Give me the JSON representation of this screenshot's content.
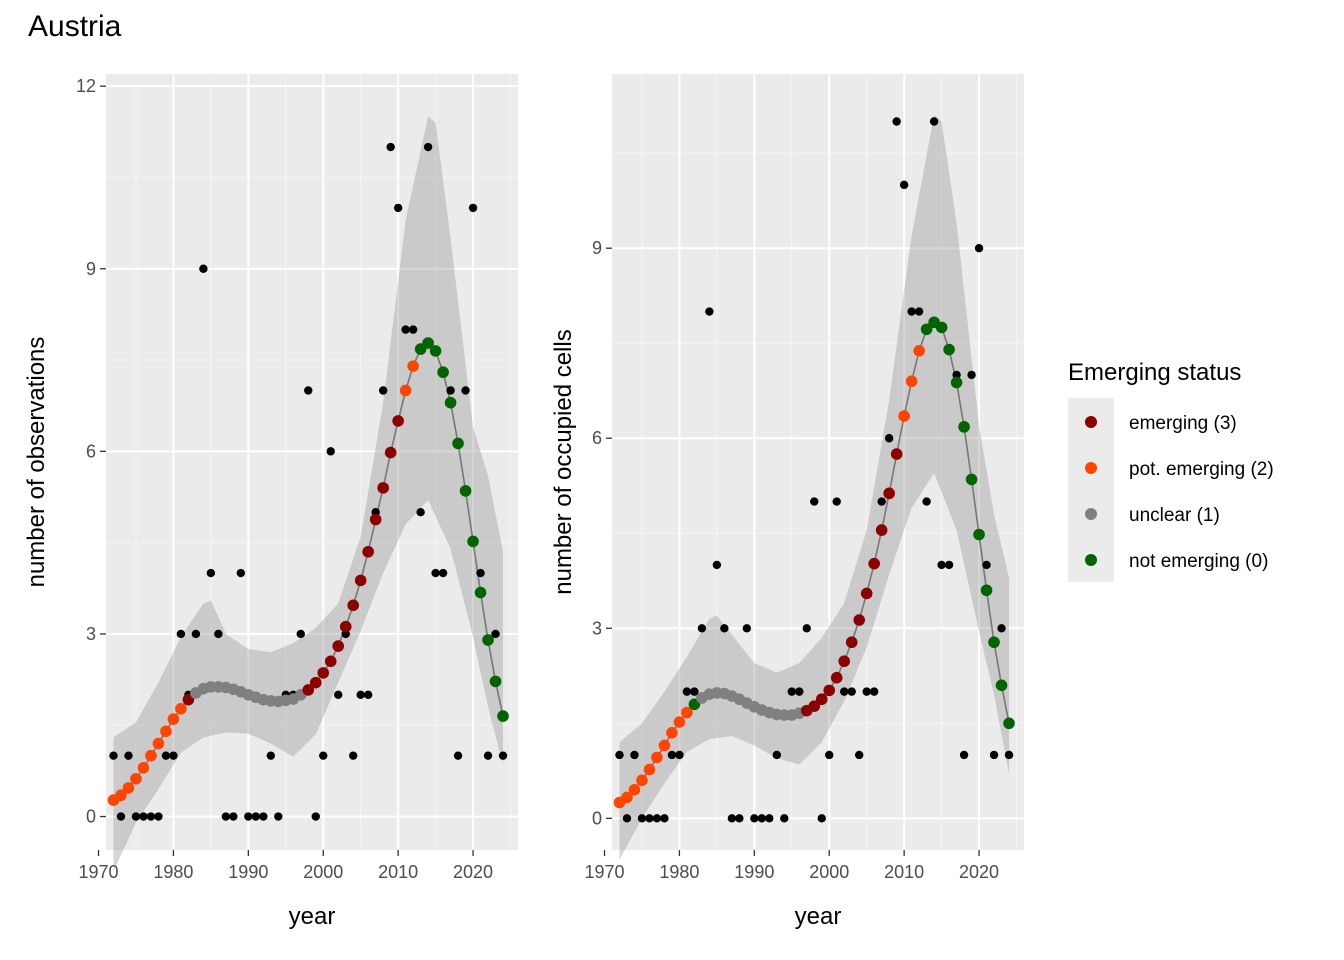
{
  "page_title": "Austria",
  "legend": {
    "title": "Emerging status",
    "items": [
      {
        "label": "emerging (3)",
        "color": "#8b0000"
      },
      {
        "label": "pot. emerging (2)",
        "color": "#ff4500"
      },
      {
        "label": "unclear (1)",
        "color": "#808080"
      },
      {
        "label": "not emerging (0)",
        "color": "#006400"
      }
    ]
  },
  "chart_data": [
    {
      "type": "scatter",
      "panel": "left",
      "xlabel": "year",
      "ylabel": "number of observations",
      "xlim": [
        1971,
        2026
      ],
      "ylim": [
        -0.55,
        12.2
      ],
      "x_ticks": [
        1970,
        1980,
        1990,
        2000,
        2010,
        2020
      ],
      "y_ticks": [
        0,
        3,
        6,
        9,
        12
      ],
      "grid": true,
      "observed": [
        [
          1972,
          1
        ],
        [
          1973,
          0
        ],
        [
          1974,
          1
        ],
        [
          1975,
          0
        ],
        [
          1976,
          0
        ],
        [
          1977,
          0
        ],
        [
          1978,
          0
        ],
        [
          1979,
          1
        ],
        [
          1980,
          1
        ],
        [
          1981,
          3
        ],
        [
          1982,
          2
        ],
        [
          1983,
          3
        ],
        [
          1984,
          9
        ],
        [
          1985,
          4
        ],
        [
          1986,
          3
        ],
        [
          1987,
          0
        ],
        [
          1988,
          0
        ],
        [
          1989,
          4
        ],
        [
          1990,
          0
        ],
        [
          1991,
          0
        ],
        [
          1992,
          0
        ],
        [
          1993,
          1
        ],
        [
          1994,
          0
        ],
        [
          1995,
          2
        ],
        [
          1996,
          2
        ],
        [
          1997,
          3
        ],
        [
          1998,
          7
        ],
        [
          1999,
          0
        ],
        [
          2000,
          1
        ],
        [
          2001,
          6
        ],
        [
          2002,
          2
        ],
        [
          2003,
          3
        ],
        [
          2004,
          1
        ],
        [
          2005,
          2
        ],
        [
          2006,
          2
        ],
        [
          2007,
          5
        ],
        [
          2008,
          7
        ],
        [
          2009,
          11
        ],
        [
          2010,
          10
        ],
        [
          2011,
          8
        ],
        [
          2012,
          8
        ],
        [
          2013,
          5
        ],
        [
          2014,
          11
        ],
        [
          2015,
          4
        ],
        [
          2016,
          4
        ],
        [
          2017,
          7
        ],
        [
          2018,
          1
        ],
        [
          2019,
          7
        ],
        [
          2020,
          10
        ],
        [
          2021,
          4
        ],
        [
          2022,
          1
        ],
        [
          2023,
          3
        ],
        [
          2024,
          1
        ]
      ],
      "fitted": [
        [
          1972,
          0.27,
          2
        ],
        [
          1973,
          0.35,
          2
        ],
        [
          1974,
          0.47,
          2
        ],
        [
          1975,
          0.62,
          2
        ],
        [
          1976,
          0.8,
          2
        ],
        [
          1977,
          1.0,
          2
        ],
        [
          1978,
          1.2,
          2
        ],
        [
          1979,
          1.4,
          2
        ],
        [
          1980,
          1.6,
          2
        ],
        [
          1981,
          1.77,
          2
        ],
        [
          1982,
          1.92,
          3
        ],
        [
          1983,
          2.03,
          1
        ],
        [
          1984,
          2.1,
          1
        ],
        [
          1985,
          2.13,
          1
        ],
        [
          1986,
          2.13,
          1
        ],
        [
          1987,
          2.12,
          1
        ],
        [
          1988,
          2.09,
          1
        ],
        [
          1989,
          2.05,
          1
        ],
        [
          1990,
          2.0,
          1
        ],
        [
          1991,
          1.96,
          1
        ],
        [
          1992,
          1.92,
          1
        ],
        [
          1993,
          1.9,
          1
        ],
        [
          1994,
          1.89,
          1
        ],
        [
          1995,
          1.91,
          1
        ],
        [
          1996,
          1.93,
          1
        ],
        [
          1997,
          2.0,
          1
        ],
        [
          1998,
          2.08,
          3
        ],
        [
          1999,
          2.2,
          3
        ],
        [
          2000,
          2.36,
          3
        ],
        [
          2001,
          2.55,
          3
        ],
        [
          2002,
          2.8,
          3
        ],
        [
          2003,
          3.12,
          3
        ],
        [
          2004,
          3.47,
          3
        ],
        [
          2005,
          3.88,
          3
        ],
        [
          2006,
          4.35,
          3
        ],
        [
          2007,
          4.88,
          3
        ],
        [
          2008,
          5.4,
          3
        ],
        [
          2009,
          5.98,
          3
        ],
        [
          2010,
          6.5,
          3
        ],
        [
          2011,
          7.0,
          2
        ],
        [
          2012,
          7.4,
          2
        ],
        [
          2013,
          7.68,
          0
        ],
        [
          2014,
          7.78,
          0
        ],
        [
          2015,
          7.65,
          0
        ],
        [
          2016,
          7.3,
          0
        ],
        [
          2017,
          6.8,
          0
        ],
        [
          2018,
          6.13,
          0
        ],
        [
          2019,
          5.35,
          0
        ],
        [
          2020,
          4.52,
          0
        ],
        [
          2021,
          3.68,
          0
        ],
        [
          2022,
          2.9,
          0
        ],
        [
          2023,
          2.22,
          0
        ],
        [
          2024,
          1.65,
          0
        ]
      ],
      "band_lower": [
        [
          1972,
          -0.9
        ],
        [
          1975,
          -0.1
        ],
        [
          1978,
          0.45
        ],
        [
          1981,
          1.05
        ],
        [
          1984,
          1.3
        ],
        [
          1987,
          1.38
        ],
        [
          1990,
          1.36
        ],
        [
          1993,
          1.2
        ],
        [
          1996,
          0.98
        ],
        [
          1999,
          1.35
        ],
        [
          2002,
          2.2
        ],
        [
          2005,
          3.05
        ],
        [
          2008,
          4.0
        ],
        [
          2011,
          4.8
        ],
        [
          2014,
          5.2
        ],
        [
          2017,
          4.4
        ],
        [
          2020,
          2.95
        ],
        [
          2022,
          1.8
        ],
        [
          2024,
          0.85
        ]
      ],
      "band_upper": [
        [
          1972,
          1.3
        ],
        [
          1975,
          1.55
        ],
        [
          1978,
          2.2
        ],
        [
          1981,
          2.95
        ],
        [
          1984,
          3.5
        ],
        [
          1985,
          3.55
        ],
        [
          1987,
          3.0
        ],
        [
          1990,
          2.75
        ],
        [
          1993,
          2.7
        ],
        [
          1996,
          2.85
        ],
        [
          1999,
          3.1
        ],
        [
          2002,
          3.5
        ],
        [
          2005,
          4.6
        ],
        [
          2008,
          6.8
        ],
        [
          2011,
          9.8
        ],
        [
          2014,
          11.5
        ],
        [
          2015,
          11.4
        ],
        [
          2017,
          9.5
        ],
        [
          2020,
          6.4
        ],
        [
          2022,
          5.6
        ],
        [
          2024,
          4.35
        ]
      ]
    },
    {
      "type": "scatter",
      "panel": "right",
      "xlabel": "year",
      "ylabel": "number of occupied cells",
      "xlim": [
        1971,
        2026
      ],
      "ylim": [
        -0.5,
        11.75
      ],
      "x_ticks": [
        1970,
        1980,
        1990,
        2000,
        2010,
        2020
      ],
      "y_ticks": [
        0,
        3,
        6,
        9
      ],
      "grid": true,
      "observed": [
        [
          1972,
          1
        ],
        [
          1973,
          0
        ],
        [
          1974,
          1
        ],
        [
          1975,
          0
        ],
        [
          1976,
          0
        ],
        [
          1977,
          0
        ],
        [
          1978,
          0
        ],
        [
          1979,
          1
        ],
        [
          1980,
          1
        ],
        [
          1981,
          2
        ],
        [
          1982,
          2
        ],
        [
          1983,
          3
        ],
        [
          1984,
          8
        ],
        [
          1985,
          4
        ],
        [
          1986,
          3
        ],
        [
          1987,
          0
        ],
        [
          1988,
          0
        ],
        [
          1989,
          3
        ],
        [
          1990,
          0
        ],
        [
          1991,
          0
        ],
        [
          1992,
          0
        ],
        [
          1993,
          1
        ],
        [
          1994,
          0
        ],
        [
          1995,
          2
        ],
        [
          1996,
          2
        ],
        [
          1997,
          3
        ],
        [
          1998,
          5
        ],
        [
          1999,
          0
        ],
        [
          2000,
          1
        ],
        [
          2001,
          5
        ],
        [
          2002,
          2
        ],
        [
          2003,
          2
        ],
        [
          2004,
          1
        ],
        [
          2005,
          2
        ],
        [
          2006,
          2
        ],
        [
          2007,
          5
        ],
        [
          2008,
          6
        ],
        [
          2009,
          11
        ],
        [
          2010,
          10
        ],
        [
          2011,
          8
        ],
        [
          2012,
          8
        ],
        [
          2013,
          5
        ],
        [
          2014,
          11
        ],
        [
          2015,
          4
        ],
        [
          2016,
          4
        ],
        [
          2017,
          7
        ],
        [
          2018,
          1
        ],
        [
          2019,
          7
        ],
        [
          2020,
          9
        ],
        [
          2021,
          4
        ],
        [
          2022,
          1
        ],
        [
          2023,
          3
        ],
        [
          2024,
          1
        ]
      ],
      "fitted": [
        [
          1972,
          0.25,
          2
        ],
        [
          1973,
          0.33,
          2
        ],
        [
          1974,
          0.45,
          2
        ],
        [
          1975,
          0.6,
          2
        ],
        [
          1976,
          0.77,
          2
        ],
        [
          1977,
          0.96,
          2
        ],
        [
          1978,
          1.15,
          2
        ],
        [
          1979,
          1.35,
          2
        ],
        [
          1980,
          1.52,
          2
        ],
        [
          1981,
          1.67,
          2
        ],
        [
          1982,
          1.8,
          0
        ],
        [
          1983,
          1.9,
          1
        ],
        [
          1984,
          1.96,
          1
        ],
        [
          1985,
          1.98,
          1
        ],
        [
          1986,
          1.97,
          1
        ],
        [
          1987,
          1.93,
          1
        ],
        [
          1988,
          1.88,
          1
        ],
        [
          1989,
          1.82,
          1
        ],
        [
          1990,
          1.76,
          1
        ],
        [
          1991,
          1.71,
          1
        ],
        [
          1992,
          1.67,
          1
        ],
        [
          1993,
          1.64,
          1
        ],
        [
          1994,
          1.63,
          1
        ],
        [
          1995,
          1.63,
          1
        ],
        [
          1996,
          1.66,
          1
        ],
        [
          1997,
          1.7,
          3
        ],
        [
          1998,
          1.77,
          3
        ],
        [
          1999,
          1.88,
          3
        ],
        [
          2000,
          2.02,
          3
        ],
        [
          2001,
          2.22,
          3
        ],
        [
          2002,
          2.48,
          3
        ],
        [
          2003,
          2.78,
          3
        ],
        [
          2004,
          3.13,
          3
        ],
        [
          2005,
          3.55,
          3
        ],
        [
          2006,
          4.02,
          3
        ],
        [
          2007,
          4.55,
          3
        ],
        [
          2008,
          5.13,
          3
        ],
        [
          2009,
          5.75,
          3
        ],
        [
          2010,
          6.35,
          2
        ],
        [
          2011,
          6.9,
          2
        ],
        [
          2012,
          7.38,
          2
        ],
        [
          2013,
          7.72,
          0
        ],
        [
          2014,
          7.83,
          0
        ],
        [
          2015,
          7.75,
          0
        ],
        [
          2016,
          7.4,
          0
        ],
        [
          2017,
          6.88,
          0
        ],
        [
          2018,
          6.18,
          0
        ],
        [
          2019,
          5.35,
          0
        ],
        [
          2020,
          4.48,
          0
        ],
        [
          2021,
          3.6,
          0
        ],
        [
          2022,
          2.78,
          0
        ],
        [
          2023,
          2.1,
          0
        ],
        [
          2024,
          1.5,
          0
        ]
      ],
      "band_lower": [
        [
          1972,
          -0.65
        ],
        [
          1975,
          0.0
        ],
        [
          1978,
          0.55
        ],
        [
          1981,
          1.05
        ],
        [
          1984,
          1.25
        ],
        [
          1987,
          1.3
        ],
        [
          1990,
          1.15
        ],
        [
          1993,
          0.95
        ],
        [
          1996,
          0.85
        ],
        [
          1999,
          1.2
        ],
        [
          2002,
          1.85
        ],
        [
          2005,
          2.7
        ],
        [
          2008,
          3.85
        ],
        [
          2011,
          4.9
        ],
        [
          2014,
          5.45
        ],
        [
          2017,
          4.55
        ],
        [
          2020,
          2.95
        ],
        [
          2022,
          1.95
        ],
        [
          2024,
          0.7
        ]
      ],
      "band_upper": [
        [
          1972,
          1.2
        ],
        [
          1975,
          1.5
        ],
        [
          1978,
          2.0
        ],
        [
          1981,
          2.55
        ],
        [
          1984,
          3.15
        ],
        [
          1985,
          3.2
        ],
        [
          1987,
          2.9
        ],
        [
          1990,
          2.45
        ],
        [
          1993,
          2.3
        ],
        [
          1996,
          2.45
        ],
        [
          1999,
          2.85
        ],
        [
          2002,
          3.4
        ],
        [
          2005,
          4.55
        ],
        [
          2008,
          6.6
        ],
        [
          2011,
          9.2
        ],
        [
          2014,
          11.1
        ],
        [
          2015,
          11.0
        ],
        [
          2017,
          9.4
        ],
        [
          2020,
          6.2
        ],
        [
          2022,
          4.8
        ],
        [
          2024,
          3.8
        ]
      ]
    }
  ]
}
